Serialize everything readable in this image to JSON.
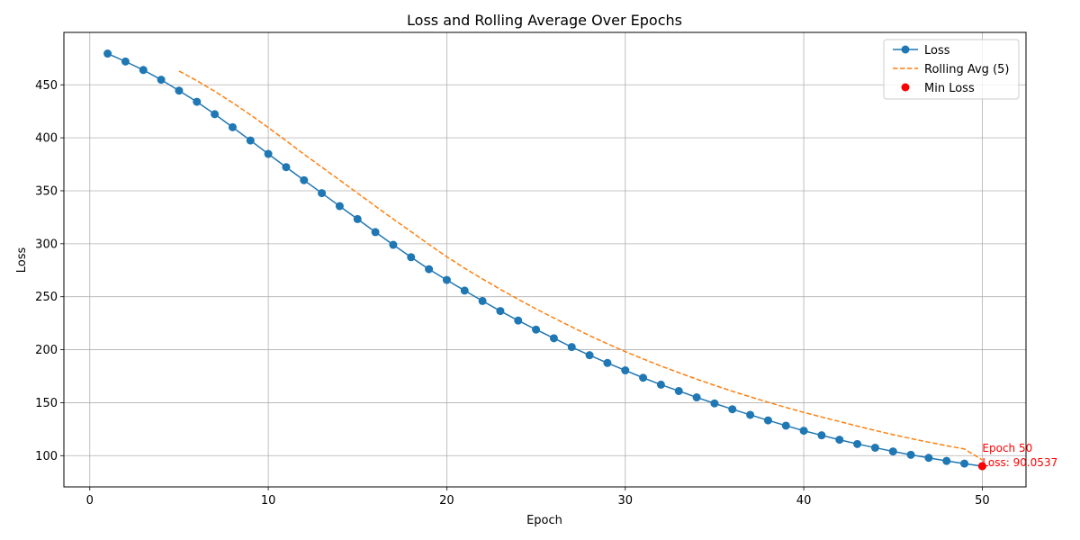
{
  "chart_data": {
    "type": "line",
    "title": "Loss and Rolling Average Over Epochs",
    "xlabel": "Epoch",
    "ylabel": "Loss",
    "xlim": [
      -1.45,
      52.45
    ],
    "ylim": [
      70.5,
      499.5
    ],
    "xticks": [
      0,
      10,
      20,
      30,
      40,
      50
    ],
    "yticks": [
      100,
      150,
      200,
      250,
      300,
      350,
      400,
      450
    ],
    "grid": true,
    "legend_position": "upper right",
    "series": [
      {
        "name": "Loss",
        "style": "line-marker",
        "color": "#1f77b4",
        "x": [
          1,
          2,
          3,
          4,
          5,
          6,
          7,
          8,
          9,
          10,
          11,
          12,
          13,
          14,
          15,
          16,
          17,
          18,
          19,
          20,
          21,
          22,
          23,
          24,
          25,
          26,
          27,
          28,
          29,
          30,
          31,
          32,
          33,
          34,
          35,
          36,
          37,
          38,
          39,
          40,
          41,
          42,
          43,
          44,
          45,
          46,
          47,
          48,
          49,
          50
        ],
        "y": [
          479.5,
          472.0,
          464.0,
          454.8,
          444.5,
          434.0,
          422.3,
          410.0,
          397.5,
          384.8,
          372.3,
          360.0,
          347.8,
          335.5,
          323.3,
          311.0,
          299.0,
          287.3,
          276.0,
          265.8,
          255.8,
          246.0,
          236.5,
          227.5,
          219.0,
          210.8,
          202.5,
          194.8,
          187.5,
          180.5,
          173.5,
          167.0,
          161.0,
          155.0,
          149.3,
          143.8,
          138.5,
          133.3,
          128.3,
          123.5,
          119.2,
          115.0,
          111.0,
          107.5,
          104.0,
          100.8,
          97.9,
          95.0,
          92.5,
          90.05
        ]
      },
      {
        "name": "Rolling Avg (5)",
        "style": "dashed",
        "color": "#ff7f0e",
        "x": [
          5,
          6,
          7,
          8,
          9,
          10,
          11,
          12,
          13,
          14,
          15,
          16,
          17,
          18,
          19,
          20,
          21,
          22,
          23,
          24,
          25,
          26,
          27,
          28,
          29,
          30,
          31,
          32,
          33,
          34,
          35,
          36,
          37,
          38,
          39,
          40,
          41,
          42,
          43,
          44,
          45,
          46,
          47,
          48,
          49,
          50
        ],
        "y": [
          463.0,
          453.9,
          443.9,
          433.1,
          421.7,
          409.7,
          397.2,
          384.5,
          372.3,
          360.1,
          347.8,
          335.5,
          323.3,
          311.4,
          299.4,
          287.8,
          276.9,
          266.8,
          257.0,
          247.6,
          238.5,
          229.9,
          221.5,
          213.3,
          205.6,
          198.2,
          191.3,
          184.6,
          178.3,
          172.2,
          166.4,
          160.8,
          155.5,
          150.4,
          145.5,
          140.8,
          136.5,
          132.2,
          127.9,
          123.8,
          119.8,
          116.2,
          112.7,
          109.4,
          106.3,
          96.0
        ]
      },
      {
        "name": "Min Loss",
        "style": "scatter",
        "color": "#ff0000",
        "x": [
          50
        ],
        "y": [
          90.0537
        ]
      }
    ],
    "annotation": {
      "lines": [
        "Epoch 50",
        "Loss: 90.0537"
      ],
      "x": 50,
      "y": 90.0537,
      "color": "#ff0000"
    }
  }
}
